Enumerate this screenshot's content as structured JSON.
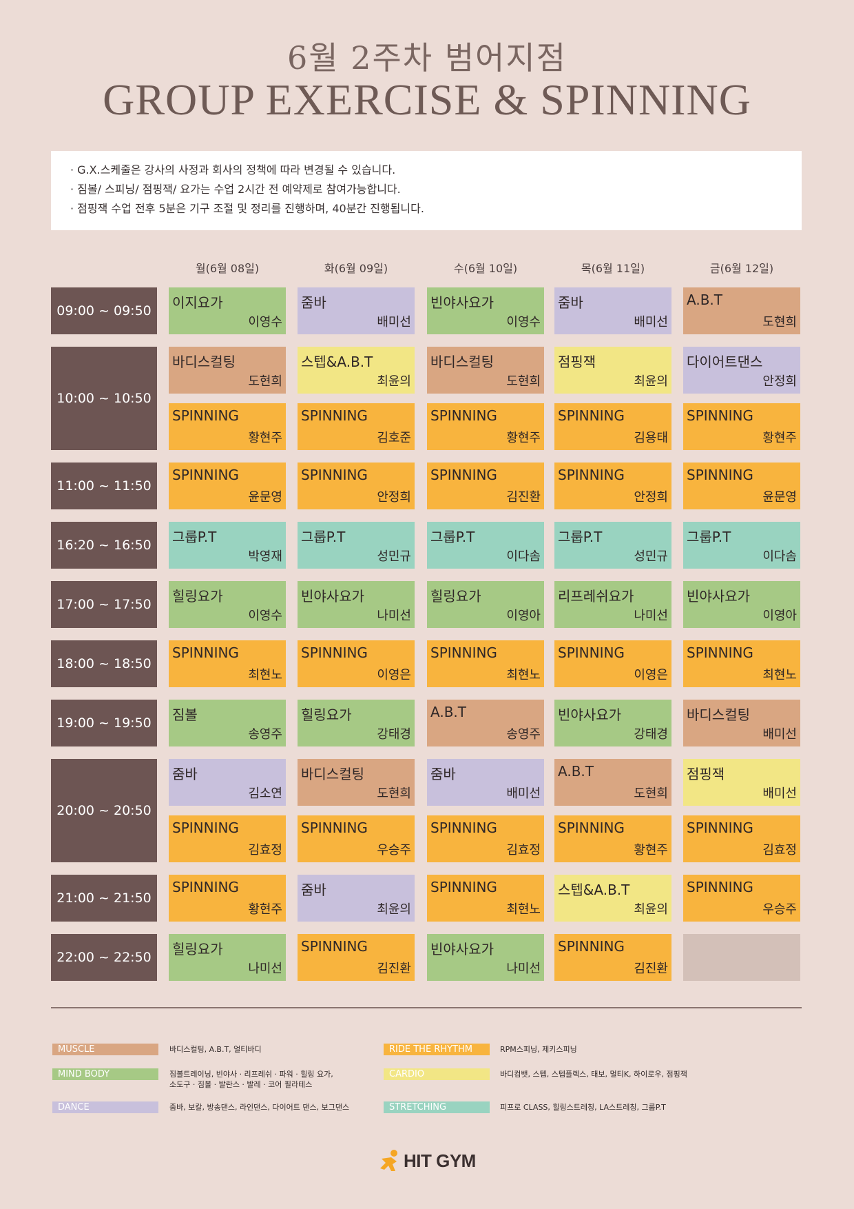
{
  "title": {
    "line1": "6월 2주차 범어지점",
    "line2": "GROUP EXERCISE & SPINNING"
  },
  "notice": [
    "· G.X.스케줄은 강사의 사정과 회사의 정책에 따라 변경될 수 있습니다.",
    "· 짐볼/ 스피닝/ 점핑잭/ 요가는 수업 2시간 전 예약제로 참여가능합니다.",
    "· 점핑잭 수업 전후 5분은 기구 조절 및 정리를 진행하며, 40분간 진행됩니다."
  ],
  "days": [
    "월(6월 08일)",
    "화(6월 09일)",
    "수(6월 10일)",
    "목(6월 11일)",
    "금(6월 12일)"
  ],
  "colors": {
    "muscle": "#d9a682",
    "mind_body": "#a6c985",
    "dance": "#c8c0dc",
    "ride": "#f8b43e",
    "cardio": "#f2e685",
    "stretching": "#99d3c0",
    "empty": "#d3c0b8"
  },
  "timeslots": [
    {
      "label": "09:00 ~ 09:50",
      "rows": [
        [
          {
            "name": "이지요가",
            "instructor": "이영수",
            "category": "mind_body"
          },
          {
            "name": "줌바",
            "instructor": "배미선",
            "category": "dance"
          },
          {
            "name": "빈야사요가",
            "instructor": "이영수",
            "category": "mind_body"
          },
          {
            "name": "줌바",
            "instructor": "배미선",
            "category": "dance"
          },
          {
            "name": "A.B.T",
            "instructor": "도현희",
            "category": "muscle"
          }
        ]
      ]
    },
    {
      "label": "10:00 ~ 10:50",
      "rows": [
        [
          {
            "name": "바디스컬팅",
            "instructor": "도현희",
            "category": "muscle"
          },
          {
            "name": "스텝&A.B.T",
            "instructor": "최윤의",
            "category": "cardio"
          },
          {
            "name": "바디스컬팅",
            "instructor": "도현희",
            "category": "muscle"
          },
          {
            "name": "점핑잭",
            "instructor": "최윤의",
            "category": "cardio"
          },
          {
            "name": "다이어트댄스",
            "instructor": "안정희",
            "category": "dance"
          }
        ],
        [
          {
            "name": "SPINNING",
            "instructor": "황현주",
            "category": "ride"
          },
          {
            "name": "SPINNING",
            "instructor": "김호준",
            "category": "ride"
          },
          {
            "name": "SPINNING",
            "instructor": "황현주",
            "category": "ride"
          },
          {
            "name": "SPINNING",
            "instructor": "김용태",
            "category": "ride"
          },
          {
            "name": "SPINNING",
            "instructor": "황현주",
            "category": "ride"
          }
        ]
      ]
    },
    {
      "label": "11:00 ~ 11:50",
      "rows": [
        [
          {
            "name": "SPINNING",
            "instructor": "윤문영",
            "category": "ride"
          },
          {
            "name": "SPINNING",
            "instructor": "안정희",
            "category": "ride"
          },
          {
            "name": "SPINNING",
            "instructor": "김진환",
            "category": "ride"
          },
          {
            "name": "SPINNING",
            "instructor": "안정희",
            "category": "ride"
          },
          {
            "name": "SPINNING",
            "instructor": "윤문영",
            "category": "ride"
          }
        ]
      ]
    },
    {
      "label": "16:20 ~ 16:50",
      "rows": [
        [
          {
            "name": "그룹P.T",
            "instructor": "박영재",
            "category": "stretching"
          },
          {
            "name": "그룹P.T",
            "instructor": "성민규",
            "category": "stretching"
          },
          {
            "name": "그룹P.T",
            "instructor": "이다솜",
            "category": "stretching"
          },
          {
            "name": "그룹P.T",
            "instructor": "성민규",
            "category": "stretching"
          },
          {
            "name": "그룹P.T",
            "instructor": "이다솜",
            "category": "stretching"
          }
        ]
      ]
    },
    {
      "label": "17:00 ~ 17:50",
      "rows": [
        [
          {
            "name": "힐링요가",
            "instructor": "이영수",
            "category": "mind_body"
          },
          {
            "name": "빈야사요가",
            "instructor": "나미선",
            "category": "mind_body"
          },
          {
            "name": "힐링요가",
            "instructor": "이영아",
            "category": "mind_body"
          },
          {
            "name": "리프레쉬요가",
            "instructor": "나미선",
            "category": "mind_body"
          },
          {
            "name": "빈야사요가",
            "instructor": "이영아",
            "category": "mind_body"
          }
        ]
      ]
    },
    {
      "label": "18:00 ~ 18:50",
      "rows": [
        [
          {
            "name": "SPINNING",
            "instructor": "최현노",
            "category": "ride"
          },
          {
            "name": "SPINNING",
            "instructor": "이영은",
            "category": "ride"
          },
          {
            "name": "SPINNING",
            "instructor": "최현노",
            "category": "ride"
          },
          {
            "name": "SPINNING",
            "instructor": "이영은",
            "category": "ride"
          },
          {
            "name": "SPINNING",
            "instructor": "최현노",
            "category": "ride"
          }
        ]
      ]
    },
    {
      "label": "19:00 ~ 19:50",
      "rows": [
        [
          {
            "name": "짐볼",
            "instructor": "송영주",
            "category": "mind_body"
          },
          {
            "name": "힐링요가",
            "instructor": "강태경",
            "category": "mind_body"
          },
          {
            "name": "A.B.T",
            "instructor": "송영주",
            "category": "muscle"
          },
          {
            "name": "빈야사요가",
            "instructor": "강태경",
            "category": "mind_body"
          },
          {
            "name": "바디스컬팅",
            "instructor": "배미선",
            "category": "muscle"
          }
        ]
      ]
    },
    {
      "label": "20:00 ~ 20:50",
      "rows": [
        [
          {
            "name": "줌바",
            "instructor": "김소연",
            "category": "dance"
          },
          {
            "name": "바디스컬팅",
            "instructor": "도현희",
            "category": "muscle"
          },
          {
            "name": "줌바",
            "instructor": "배미선",
            "category": "dance"
          },
          {
            "name": "A.B.T",
            "instructor": "도현희",
            "category": "muscle"
          },
          {
            "name": "점핑잭",
            "instructor": "배미선",
            "category": "cardio"
          }
        ],
        [
          {
            "name": "SPINNING",
            "instructor": "김효정",
            "category": "ride"
          },
          {
            "name": "SPINNING",
            "instructor": "우승주",
            "category": "ride"
          },
          {
            "name": "SPINNING",
            "instructor": "김효정",
            "category": "ride"
          },
          {
            "name": "SPINNING",
            "instructor": "황현주",
            "category": "ride"
          },
          {
            "name": "SPINNING",
            "instructor": "김효정",
            "category": "ride"
          }
        ]
      ]
    },
    {
      "label": "21:00 ~ 21:50",
      "rows": [
        [
          {
            "name": "SPINNING",
            "instructor": "황현주",
            "category": "ride"
          },
          {
            "name": "줌바",
            "instructor": "최윤의",
            "category": "dance"
          },
          {
            "name": "SPINNING",
            "instructor": "최현노",
            "category": "ride"
          },
          {
            "name": "스텝&A.B.T",
            "instructor": "최윤의",
            "category": "cardio"
          },
          {
            "name": "SPINNING",
            "instructor": "우승주",
            "category": "ride"
          }
        ]
      ]
    },
    {
      "label": "22:00 ~ 22:50",
      "rows": [
        [
          {
            "name": "힐링요가",
            "instructor": "나미선",
            "category": "mind_body"
          },
          {
            "name": "SPINNING",
            "instructor": "김진환",
            "category": "ride"
          },
          {
            "name": "빈야사요가",
            "instructor": "나미선",
            "category": "mind_body"
          },
          {
            "name": "SPINNING",
            "instructor": "김진환",
            "category": "ride"
          },
          {
            "name": "",
            "instructor": "",
            "category": "empty"
          }
        ]
      ]
    }
  ],
  "legend": [
    {
      "tag": "MUSCLE",
      "category": "muscle",
      "desc": [
        "바디스컬팅, A.B.T, 얼티바디"
      ]
    },
    {
      "tag": "MIND BODY",
      "category": "mind_body",
      "desc": [
        "짐볼트레이닝, 빈야사 · 리프레쉬 · 파워 · 힐링 요가,",
        "소도구 · 짐볼 · 발란스 · 발레 · 코어 필라테스"
      ]
    },
    {
      "tag": "DANCE",
      "category": "dance",
      "desc": [
        "줌바, 보칼, 방송댄스, 라인댄스, 다이어트 댄스, 보그댄스"
      ]
    },
    {
      "tag": "RIDE THE RHYTHM",
      "category": "ride",
      "desc": [
        "RPM스피닝, 제키스피닝"
      ]
    },
    {
      "tag": "CARDIO",
      "category": "cardio",
      "desc": [
        "바디컴뱃, 스텝, 스텝플렉스, 태보, 멀티K, 하이로우, 점핑잭"
      ]
    },
    {
      "tag": "STRETCHING",
      "category": "stretching",
      "desc": [
        "피프로 CLASS, 힐링스트레칭, LA스트레칭, 그룹P.T"
      ]
    }
  ],
  "logo": {
    "text": "HIT GYM"
  }
}
